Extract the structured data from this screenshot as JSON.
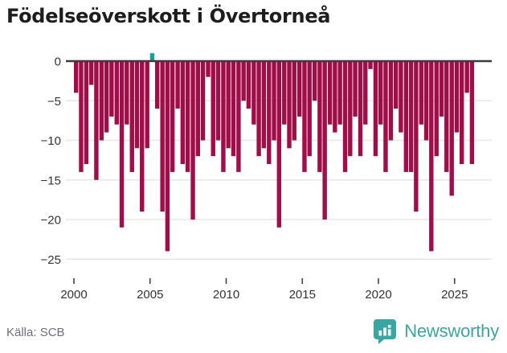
{
  "title": "Födelseöverskott i Övertorneå",
  "source": {
    "label": "Källa: SCB"
  },
  "brand": {
    "name": "Newsworthy",
    "icon": "newsworthy-bar-chart-bubble",
    "color": "#3aa6a1"
  },
  "chart_data": {
    "type": "bar",
    "title": "Födelseöverskott i Övertorneå",
    "xlabel": "",
    "ylabel": "",
    "grid": true,
    "legend": false,
    "xlim": [
      1999.5,
      2027.2
    ],
    "ylim": [
      -25,
      1.5
    ],
    "xticks": [
      2000,
      2005,
      2010,
      2015,
      2020,
      2025
    ],
    "yticks": [
      0,
      -5,
      -10,
      -15,
      -20,
      -25
    ],
    "ytick_labels": [
      "0",
      "−5",
      "−10",
      "−15",
      "−20",
      "−25"
    ],
    "negative_color": "#a00d49",
    "positive_color": "#12a29c",
    "x": [
      2000,
      2000.33,
      2000.67,
      2001,
      2001.33,
      2001.67,
      2002,
      2002.33,
      2002.67,
      2003,
      2003.33,
      2003.67,
      2004,
      2004.33,
      2004.67,
      2005,
      2005.33,
      2005.67,
      2006,
      2006.33,
      2006.67,
      2007,
      2007.33,
      2007.67,
      2008,
      2008.33,
      2008.67,
      2009,
      2009.33,
      2009.67,
      2010,
      2010.33,
      2010.67,
      2011,
      2011.33,
      2011.67,
      2012,
      2012.33,
      2012.67,
      2013,
      2013.33,
      2013.67,
      2014,
      2014.33,
      2014.67,
      2015,
      2015.33,
      2015.67,
      2016,
      2016.33,
      2016.67,
      2017,
      2017.33,
      2017.67,
      2018,
      2018.33,
      2018.67,
      2019,
      2019.33,
      2019.67,
      2020,
      2020.33,
      2020.67,
      2021,
      2021.33,
      2021.67,
      2022,
      2022.33,
      2022.67,
      2023,
      2023.33,
      2023.67,
      2024,
      2024.33,
      2024.67,
      2025,
      2025.33,
      2025.67,
      2026
    ],
    "values": [
      -4,
      -14,
      -13,
      -3,
      -15,
      -10,
      -9,
      -7,
      -8,
      -21,
      -8,
      -14,
      -11,
      -19,
      -11,
      1,
      -6,
      -19,
      -24,
      -14,
      -6,
      -13,
      -14,
      -20,
      -12,
      -10,
      -2,
      -12,
      -10,
      -14,
      -11,
      -12,
      -14,
      -5,
      -6,
      -8,
      -12,
      -11,
      -13,
      -10,
      -21,
      -8,
      -11,
      -10,
      -7,
      -14,
      -12,
      -5,
      -14,
      -20,
      -8,
      -9,
      -8,
      -14,
      -12,
      -7,
      -12,
      -8,
      -1,
      -12,
      -8,
      -14,
      -10,
      -6,
      -9,
      -14,
      -14,
      -19,
      -8,
      -10,
      -24,
      -12,
      -7,
      -14,
      -17,
      -9,
      -13,
      -4,
      -13
    ]
  }
}
